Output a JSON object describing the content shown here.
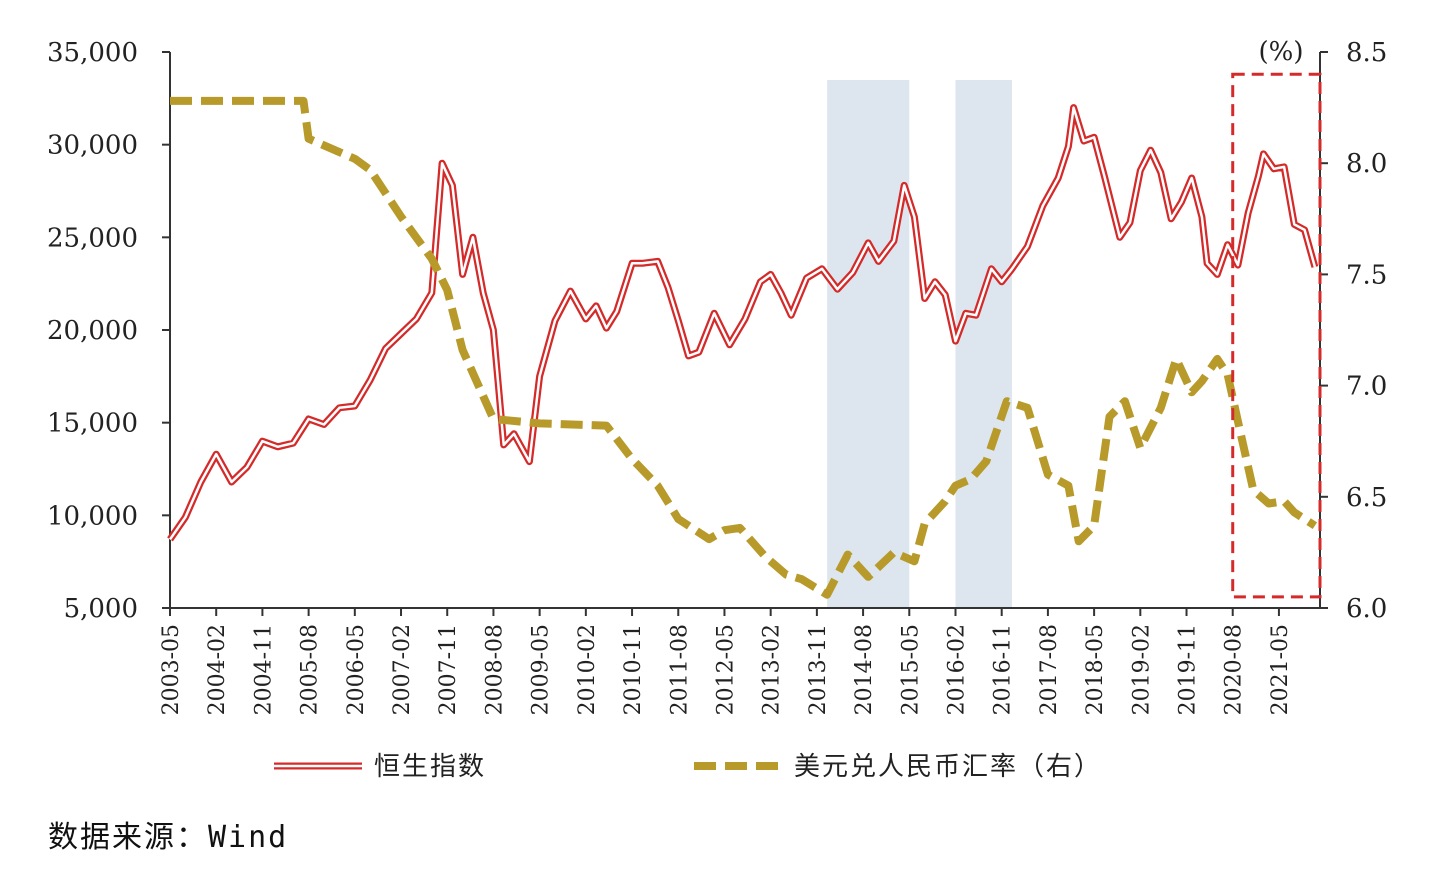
{
  "source_text": "数据来源：Wind",
  "colors": {
    "hsi": "#d42a2a",
    "usdcny": "#b89a2a",
    "shade": "#dde6ee",
    "highlight": "#d42a2a"
  },
  "chart_data": {
    "type": "line",
    "left_axis": {
      "range": [
        5000,
        35000
      ],
      "ticks": [
        "5,000",
        "10,000",
        "15,000",
        "20,000",
        "25,000",
        "30,000",
        "35,000"
      ]
    },
    "right_axis": {
      "unit": "(%)",
      "range": [
        6.0,
        8.5
      ],
      "ticks": [
        "6.0",
        "6.5",
        "7.0",
        "7.5",
        "8.0",
        "8.5"
      ]
    },
    "x_ticks": [
      "2003-05",
      "2004-02",
      "2004-11",
      "2005-08",
      "2006-05",
      "2007-02",
      "2007-11",
      "2008-08",
      "2009-05",
      "2010-02",
      "2010-11",
      "2011-08",
      "2012-05",
      "2013-02",
      "2013-11",
      "2014-08",
      "2015-05",
      "2016-02",
      "2016-11",
      "2017-08",
      "2018-05",
      "2019-02",
      "2019-11",
      "2020-08",
      "2021-05"
    ],
    "shaded_periods": [
      [
        "2014-01",
        "2015-05"
      ],
      [
        "2016-02",
        "2017-01"
      ]
    ],
    "highlight_box": {
      "from": "2020-08",
      "to": "2022-01",
      "y_range": [
        6.05,
        8.4
      ]
    },
    "series": [
      {
        "name": "恒生指数",
        "axis": "left",
        "style": "double-line",
        "points": [
          [
            "2003-05",
            8700
          ],
          [
            "2003-08",
            9900
          ],
          [
            "2003-11",
            11800
          ],
          [
            "2004-02",
            13300
          ],
          [
            "2004-05",
            11800
          ],
          [
            "2004-08",
            12600
          ],
          [
            "2004-11",
            14000
          ],
          [
            "2005-02",
            13700
          ],
          [
            "2005-05",
            13900
          ],
          [
            "2005-08",
            15200
          ],
          [
            "2005-11",
            14900
          ],
          [
            "2006-02",
            15800
          ],
          [
            "2006-05",
            15900
          ],
          [
            "2006-08",
            17300
          ],
          [
            "2006-11",
            19000
          ],
          [
            "2007-02",
            19800
          ],
          [
            "2007-05",
            20600
          ],
          [
            "2007-08",
            22000
          ],
          [
            "2007-10",
            29000
          ],
          [
            "2007-12",
            27800
          ],
          [
            "2008-02",
            23000
          ],
          [
            "2008-04",
            25000
          ],
          [
            "2008-06",
            22000
          ],
          [
            "2008-08",
            20000
          ],
          [
            "2008-10",
            13800
          ],
          [
            "2008-12",
            14400
          ],
          [
            "2009-03",
            12900
          ],
          [
            "2009-05",
            17500
          ],
          [
            "2009-08",
            20500
          ],
          [
            "2009-11",
            22100
          ],
          [
            "2010-02",
            20600
          ],
          [
            "2010-04",
            21300
          ],
          [
            "2010-06",
            20100
          ],
          [
            "2010-08",
            21000
          ],
          [
            "2010-11",
            23600
          ],
          [
            "2011-01",
            23600
          ],
          [
            "2011-04",
            23700
          ],
          [
            "2011-06",
            22300
          ],
          [
            "2011-08",
            20500
          ],
          [
            "2011-10",
            18600
          ],
          [
            "2011-12",
            18800
          ],
          [
            "2012-03",
            20900
          ],
          [
            "2012-06",
            19200
          ],
          [
            "2012-09",
            20600
          ],
          [
            "2012-12",
            22600
          ],
          [
            "2013-02",
            23000
          ],
          [
            "2013-04",
            22000
          ],
          [
            "2013-06",
            20800
          ],
          [
            "2013-09",
            22800
          ],
          [
            "2013-12",
            23300
          ],
          [
            "2014-03",
            22200
          ],
          [
            "2014-06",
            23100
          ],
          [
            "2014-09",
            24700
          ],
          [
            "2014-11",
            23700
          ],
          [
            "2015-02",
            24800
          ],
          [
            "2015-04",
            27800
          ],
          [
            "2015-06",
            26100
          ],
          [
            "2015-08",
            21700
          ],
          [
            "2015-10",
            22600
          ],
          [
            "2015-12",
            21900
          ],
          [
            "2016-02",
            19400
          ],
          [
            "2016-04",
            20900
          ],
          [
            "2016-06",
            20800
          ],
          [
            "2016-09",
            23300
          ],
          [
            "2016-11",
            22600
          ],
          [
            "2017-01",
            23300
          ],
          [
            "2017-04",
            24500
          ],
          [
            "2017-07",
            26700
          ],
          [
            "2017-10",
            28200
          ],
          [
            "2017-12",
            29900
          ],
          [
            "2018-01",
            32000
          ],
          [
            "2018-03",
            30200
          ],
          [
            "2018-05",
            30400
          ],
          [
            "2018-07",
            28300
          ],
          [
            "2018-10",
            25000
          ],
          [
            "2018-12",
            25800
          ],
          [
            "2019-02",
            28600
          ],
          [
            "2019-04",
            29700
          ],
          [
            "2019-06",
            28500
          ],
          [
            "2019-08",
            26000
          ],
          [
            "2019-10",
            26900
          ],
          [
            "2019-12",
            28200
          ],
          [
            "2020-02",
            26100
          ],
          [
            "2020-03",
            23600
          ],
          [
            "2020-05",
            23000
          ],
          [
            "2020-07",
            24600
          ],
          [
            "2020-09",
            23500
          ],
          [
            "2020-11",
            26300
          ],
          [
            "2021-01",
            28300
          ],
          [
            "2021-02",
            29500
          ],
          [
            "2021-04",
            28700
          ],
          [
            "2021-06",
            28800
          ],
          [
            "2021-08",
            25700
          ],
          [
            "2021-10",
            25400
          ],
          [
            "2021-12",
            23400
          ]
        ]
      },
      {
        "name": "美元兑人民币汇率（右）",
        "axis": "right",
        "style": "dashed",
        "points": [
          [
            "2003-05",
            8.28
          ],
          [
            "2005-07",
            8.28
          ],
          [
            "2005-08",
            8.11
          ],
          [
            "2006-05",
            8.02
          ],
          [
            "2006-08",
            7.97
          ],
          [
            "2007-02",
            7.76
          ],
          [
            "2007-08",
            7.57
          ],
          [
            "2007-11",
            7.43
          ],
          [
            "2008-02",
            7.16
          ],
          [
            "2008-08",
            6.85
          ],
          [
            "2009-05",
            6.83
          ],
          [
            "2010-06",
            6.82
          ],
          [
            "2010-11",
            6.67
          ],
          [
            "2011-04",
            6.55
          ],
          [
            "2011-08",
            6.4
          ],
          [
            "2012-02",
            6.31
          ],
          [
            "2012-05",
            6.35
          ],
          [
            "2012-08",
            6.36
          ],
          [
            "2013-01",
            6.23
          ],
          [
            "2013-05",
            6.15
          ],
          [
            "2013-08",
            6.13
          ],
          [
            "2014-01",
            6.06
          ],
          [
            "2014-03",
            6.15
          ],
          [
            "2014-05",
            6.24
          ],
          [
            "2014-09",
            6.14
          ],
          [
            "2015-02",
            6.25
          ],
          [
            "2015-06",
            6.21
          ],
          [
            "2015-08",
            6.38
          ],
          [
            "2015-12",
            6.48
          ],
          [
            "2016-02",
            6.55
          ],
          [
            "2016-05",
            6.58
          ],
          [
            "2016-08",
            6.66
          ],
          [
            "2016-12",
            6.93
          ],
          [
            "2017-04",
            6.9
          ],
          [
            "2017-08",
            6.6
          ],
          [
            "2017-12",
            6.55
          ],
          [
            "2018-02",
            6.3
          ],
          [
            "2018-05",
            6.37
          ],
          [
            "2018-08",
            6.86
          ],
          [
            "2018-11",
            6.93
          ],
          [
            "2019-02",
            6.72
          ],
          [
            "2019-06",
            6.9
          ],
          [
            "2019-09",
            7.12
          ],
          [
            "2019-12",
            6.97
          ],
          [
            "2020-02",
            7.02
          ],
          [
            "2020-05",
            7.12
          ],
          [
            "2020-07",
            7.05
          ],
          [
            "2020-09",
            6.84
          ],
          [
            "2020-12",
            6.53
          ],
          [
            "2021-03",
            6.47
          ],
          [
            "2021-06",
            6.48
          ],
          [
            "2021-08",
            6.43
          ],
          [
            "2021-12",
            6.37
          ]
        ]
      }
    ]
  }
}
